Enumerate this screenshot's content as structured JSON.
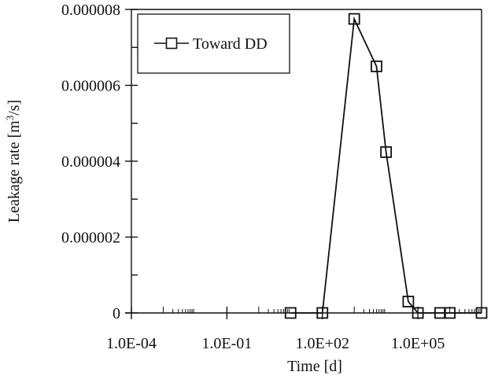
{
  "chart_data": {
    "type": "line",
    "title": "",
    "xlabel": "Time [d]",
    "ylabel_main": "Leakage rate [m",
    "ylabel_sup": "3",
    "ylabel_end": "/s]",
    "x_scale": "log",
    "xlim": [
      0.0001,
      10000000
    ],
    "ylim": [
      0,
      8e-06
    ],
    "x_tick_values": [
      0.0001,
      0.1,
      100,
      100000
    ],
    "x_tick_labels": [
      "1.0E-04",
      "1.0E-01",
      "1.0E+02",
      "1.0E+05"
    ],
    "y_tick_values": [
      0,
      2e-06,
      4e-06,
      6e-06,
      8e-06
    ],
    "y_tick_labels": [
      "0",
      "0.000002",
      "0.000004",
      "0.000006",
      "0.000008"
    ],
    "grid": false,
    "legend_position": "top-left",
    "series": [
      {
        "name": "Toward DD",
        "marker": "open-square",
        "color": "#111111",
        "x": [
          10,
          100,
          1000,
          5000,
          10000,
          50000,
          100000,
          500000,
          1000000,
          10000000
        ],
        "y": [
          0,
          0,
          7.75e-06,
          6.5e-06,
          4.24e-06,
          3e-07,
          0,
          0,
          0,
          0
        ]
      }
    ]
  }
}
